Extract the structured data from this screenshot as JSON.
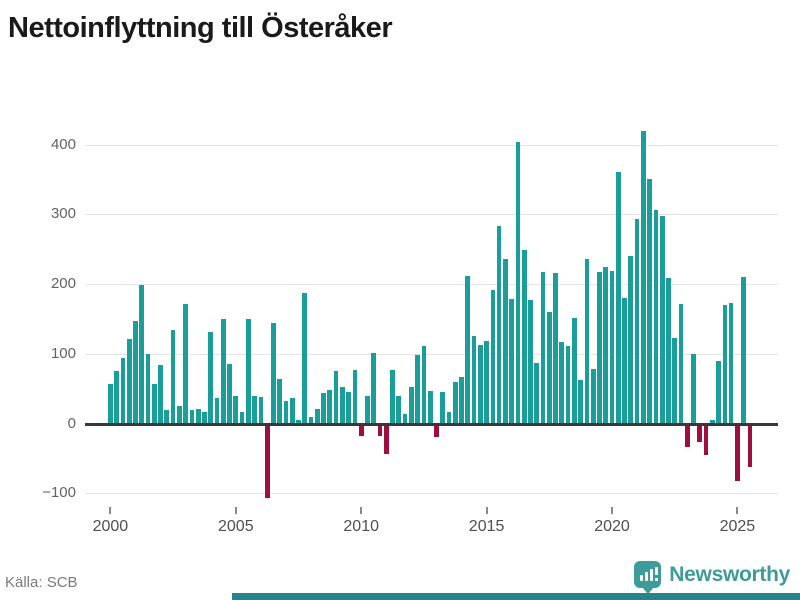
{
  "title": "Nettoinflyttning till Österåker",
  "source": "Källa: SCB",
  "branding": {
    "name": "Newsworthy",
    "logo_icon": "bar-chart-pin-icon"
  },
  "colors": {
    "positive_bar": "#1a9e99",
    "negative_bar": "#9e0f3f",
    "gridline": "#e4e4e4",
    "zero_axis": "#37383d",
    "axis_label": "#636363",
    "brand_teal": "#3d9b99",
    "bottom_strip": "#27848a"
  },
  "chart_data": {
    "type": "bar",
    "title": "Nettoinflyttning till Österåker",
    "xlabel": "",
    "ylabel": "",
    "period": "quarterly",
    "start_year": 2000,
    "x_tick_years": [
      2000,
      2005,
      2010,
      2015,
      2020,
      2025
    ],
    "y_ticks": [
      400,
      300,
      200,
      100,
      0,
      -100
    ],
    "ylim": [
      -130,
      440
    ],
    "grid": true,
    "values": [
      57,
      76,
      94,
      121,
      147,
      198,
      100,
      57,
      84,
      20,
      134,
      25,
      172,
      19,
      21,
      17,
      131,
      36,
      150,
      86,
      40,
      17,
      150,
      40,
      38,
      -105,
      144,
      64,
      33,
      36,
      5,
      187,
      10,
      21,
      44,
      48,
      76,
      52,
      45,
      77,
      -15,
      40,
      101,
      -16,
      -42,
      77,
      39,
      13,
      52,
      98,
      111,
      46,
      -17,
      45,
      17,
      60,
      67,
      212,
      126,
      113,
      118,
      192,
      283,
      236,
      179,
      403,
      249,
      177,
      87,
      217,
      160,
      216,
      117,
      111,
      152,
      63,
      236,
      78,
      217,
      224,
      218,
      360,
      180,
      240,
      293,
      419,
      351,
      306,
      298,
      208,
      122,
      172,
      -31,
      99,
      -24,
      -43,
      5,
      90,
      170,
      173,
      -80,
      210,
      -60
    ]
  }
}
